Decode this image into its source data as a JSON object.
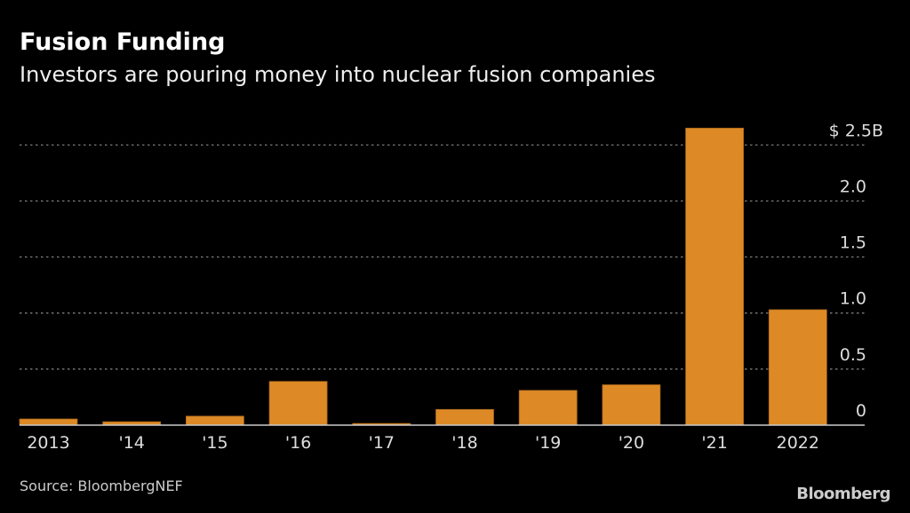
{
  "chart_data": {
    "type": "bar",
    "title": "Fusion Funding",
    "subtitle": "Investors are pouring money into nuclear fusion companies",
    "categories": [
      "2013",
      "'14",
      "'15",
      "'16",
      "'17",
      "'18",
      "'19",
      "'20",
      "'21",
      "2022"
    ],
    "values": [
      0.055,
      0.03,
      0.08,
      0.39,
      0.015,
      0.14,
      0.31,
      0.36,
      2.65,
      1.03
    ],
    "ylim": [
      0,
      2.5
    ],
    "yticks": [
      0,
      0.5,
      1.0,
      1.5,
      2.0,
      2.5
    ],
    "ytick_labels": [
      "0",
      "0.5",
      "1.0",
      "1.5",
      "2.0",
      "$ 2.5B"
    ],
    "grid": true,
    "yaxis_side": "right",
    "bar_color": "#DD8A26",
    "source": "Source: BloombergNEF",
    "logo": "Bloomberg"
  }
}
